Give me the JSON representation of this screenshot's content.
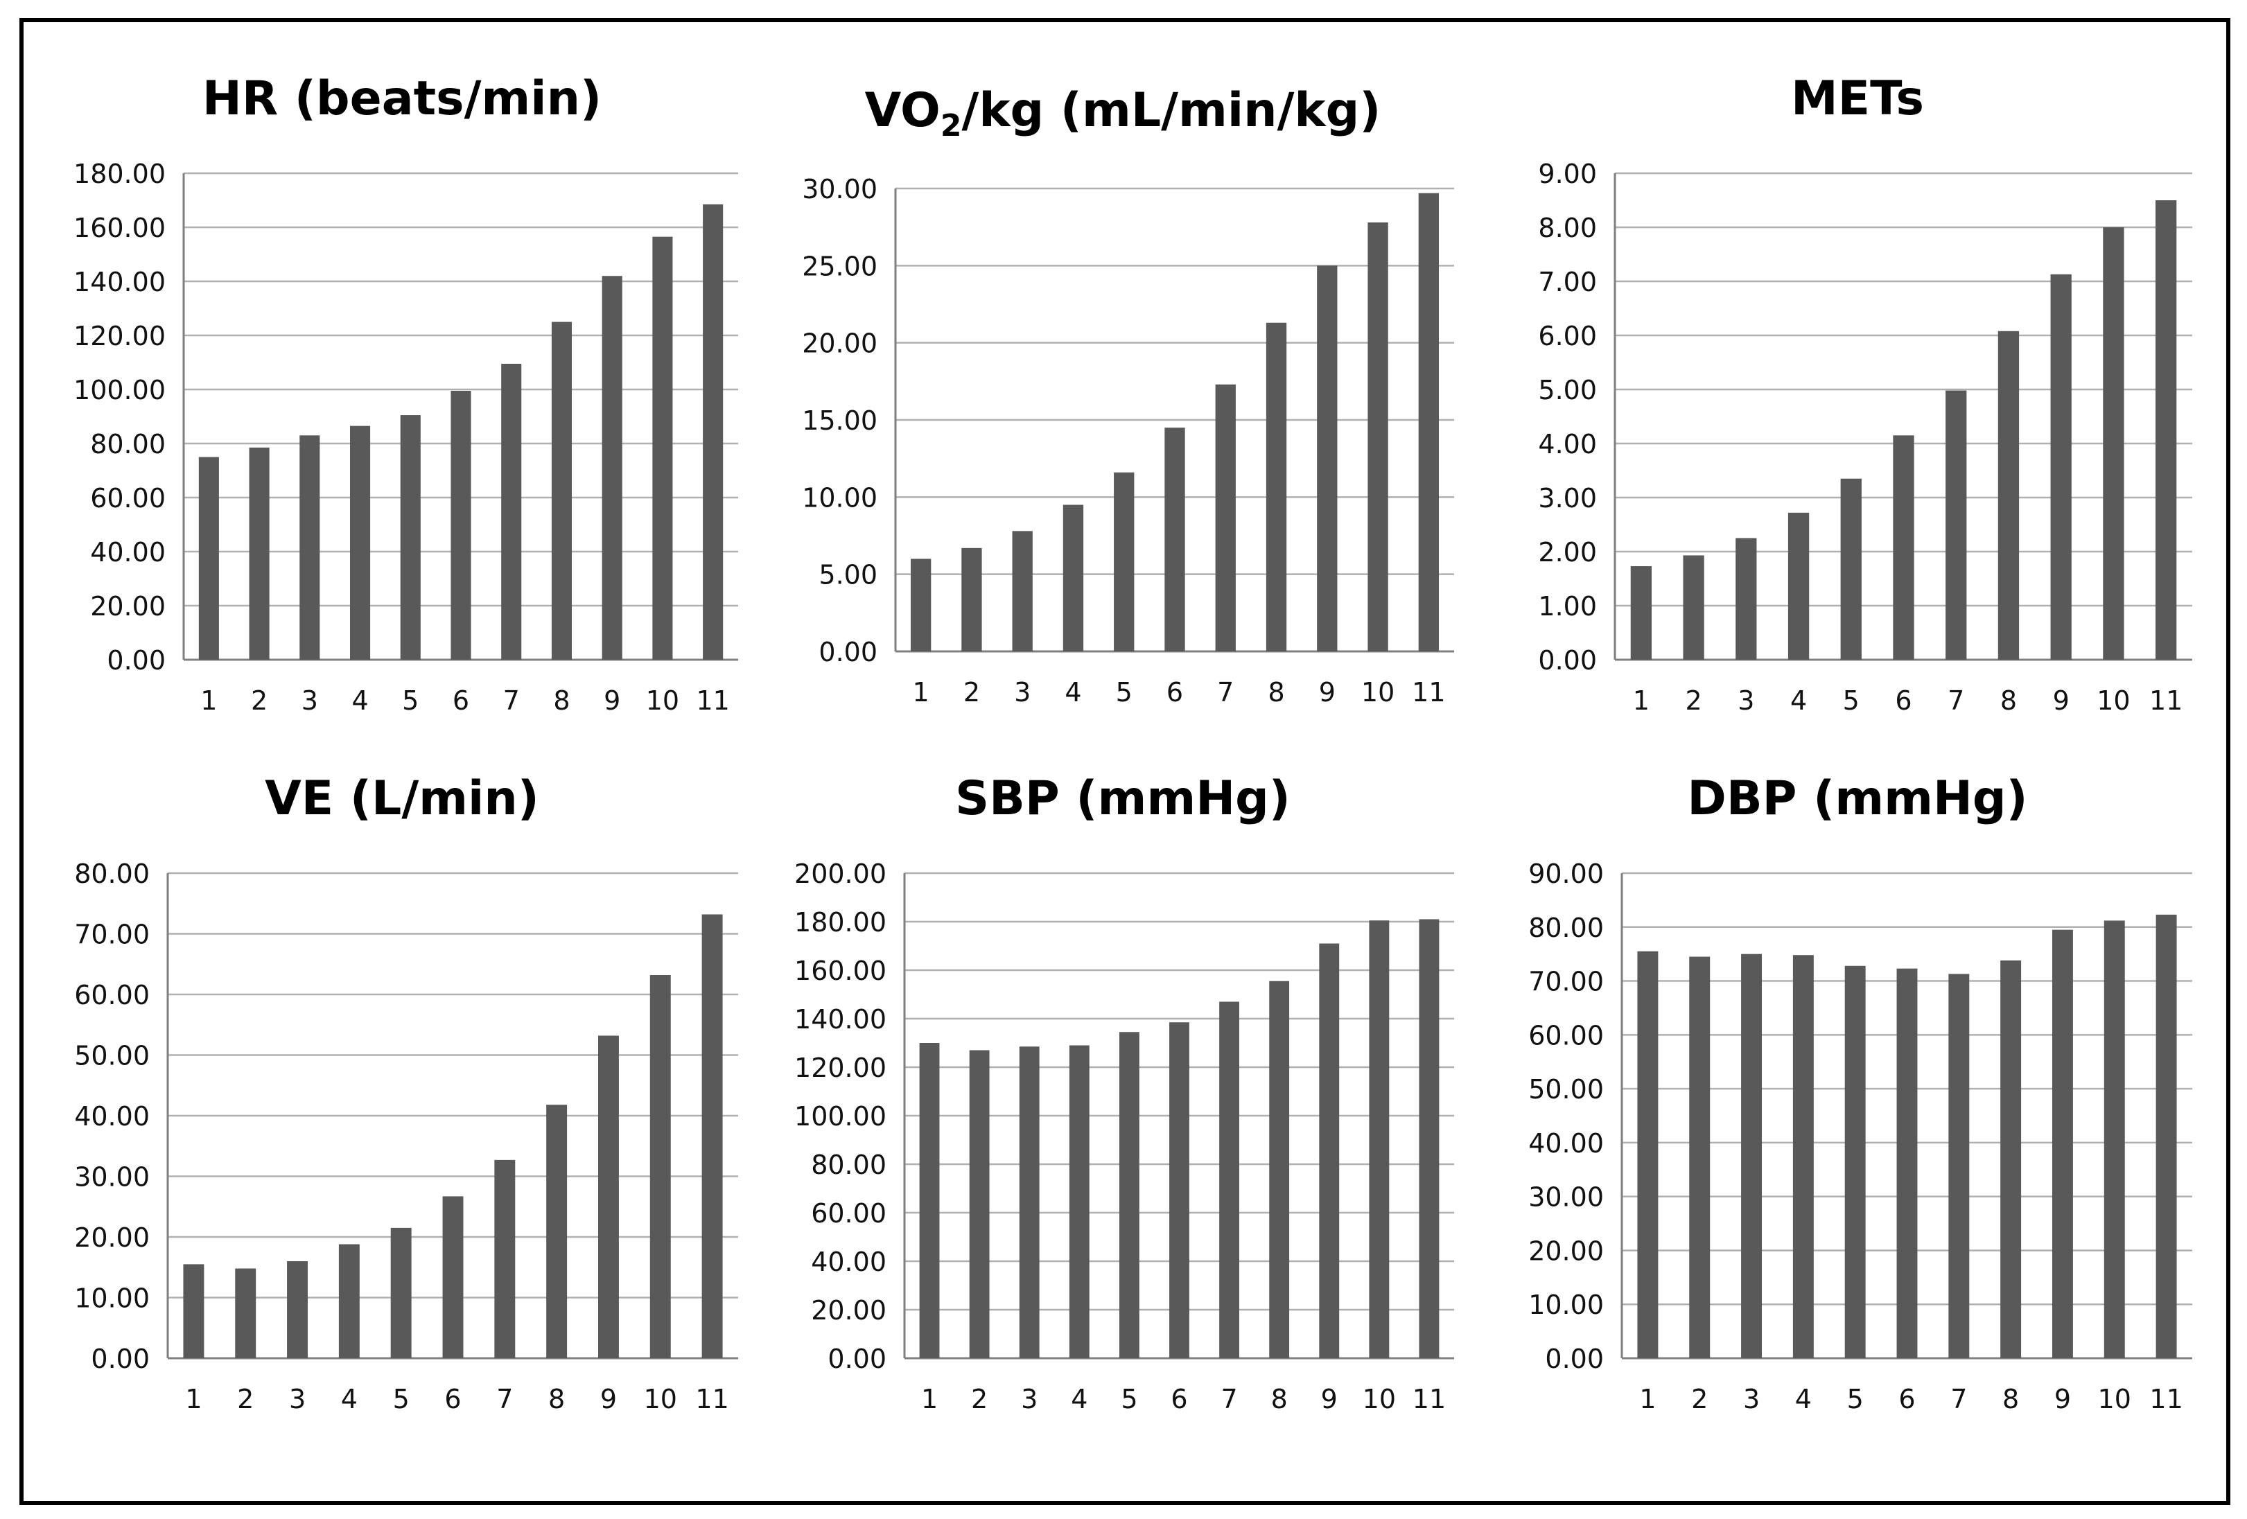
{
  "colors": {
    "bar": "#595959",
    "grid": "#b0b0b0",
    "axis": "#7f7f7f",
    "frame": "#000000",
    "background": "#ffffff"
  },
  "chart_data": [
    {
      "type": "bar",
      "title_main": "HR (beats/min)",
      "title_sub": "",
      "title_rest": "",
      "categories": [
        "1",
        "2",
        "3",
        "4",
        "5",
        "6",
        "7",
        "8",
        "9",
        "10",
        "11"
      ],
      "values": [
        75.0,
        78.5,
        83.0,
        86.5,
        90.5,
        99.5,
        109.5,
        125.0,
        142.0,
        156.5,
        168.5
      ],
      "ylim": [
        0,
        180
      ],
      "yticks": [
        "0.00",
        "20.00",
        "40.00",
        "60.00",
        "80.00",
        "100.00",
        "120.00",
        "140.00",
        "160.00",
        "180.00"
      ],
      "xlabel": "",
      "ylabel": ""
    },
    {
      "type": "bar",
      "title_main": "VO",
      "title_sub": "2",
      "title_rest": "/kg (mL/min/kg)",
      "categories": [
        "1",
        "2",
        "3",
        "4",
        "5",
        "6",
        "7",
        "8",
        "9",
        "10",
        "11"
      ],
      "values": [
        6.0,
        6.7,
        7.8,
        9.5,
        11.6,
        14.5,
        17.3,
        21.3,
        25.0,
        27.8,
        29.7
      ],
      "ylim": [
        0,
        30
      ],
      "yticks": [
        "0.00",
        "5.00",
        "10.00",
        "15.00",
        "20.00",
        "25.00",
        "30.00"
      ],
      "xlabel": "",
      "ylabel": ""
    },
    {
      "type": "bar",
      "title_main": "METs",
      "title_sub": "",
      "title_rest": "",
      "categories": [
        "1",
        "2",
        "3",
        "4",
        "5",
        "6",
        "7",
        "8",
        "9",
        "10",
        "11"
      ],
      "values": [
        1.73,
        1.93,
        2.25,
        2.72,
        3.35,
        4.15,
        4.98,
        6.08,
        7.13,
        8.0,
        8.5
      ],
      "ylim": [
        0,
        9
      ],
      "yticks": [
        "0.00",
        "1.00",
        "2.00",
        "3.00",
        "4.00",
        "5.00",
        "6.00",
        "7.00",
        "8.00",
        "9.00"
      ],
      "xlabel": "",
      "ylabel": ""
    },
    {
      "type": "bar",
      "title_main": "VE (L/min)",
      "title_sub": "",
      "title_rest": "",
      "categories": [
        "1",
        "2",
        "3",
        "4",
        "5",
        "6",
        "7",
        "8",
        "9",
        "10",
        "11"
      ],
      "values": [
        15.5,
        14.8,
        16.0,
        18.8,
        21.5,
        26.7,
        32.7,
        41.8,
        53.2,
        63.2,
        73.2
      ],
      "ylim": [
        0,
        80
      ],
      "yticks": [
        "0.00",
        "10.00",
        "20.00",
        "30.00",
        "40.00",
        "50.00",
        "60.00",
        "70.00",
        "80.00"
      ],
      "xlabel": "",
      "ylabel": ""
    },
    {
      "type": "bar",
      "title_main": "SBP (mmHg)",
      "title_sub": "",
      "title_rest": "",
      "categories": [
        "1",
        "2",
        "3",
        "4",
        "5",
        "6",
        "7",
        "8",
        "9",
        "10",
        "11"
      ],
      "values": [
        130.0,
        127.0,
        128.5,
        129.0,
        134.5,
        138.5,
        147.0,
        155.5,
        171.0,
        180.5,
        181.0
      ],
      "ylim": [
        0,
        200
      ],
      "yticks": [
        "0.00",
        "20.00",
        "40.00",
        "60.00",
        "80.00",
        "100.00",
        "120.00",
        "140.00",
        "160.00",
        "180.00",
        "200.00"
      ],
      "xlabel": "",
      "ylabel": ""
    },
    {
      "type": "bar",
      "title_main": "DBP (mmHg)",
      "title_sub": "",
      "title_rest": "",
      "categories": [
        "1",
        "2",
        "3",
        "4",
        "5",
        "6",
        "7",
        "8",
        "9",
        "10",
        "11"
      ],
      "values": [
        75.5,
        74.5,
        75.0,
        74.8,
        72.8,
        72.3,
        71.3,
        73.8,
        79.5,
        81.2,
        82.3
      ],
      "ylim": [
        0,
        90
      ],
      "yticks": [
        "0.00",
        "10.00",
        "20.00",
        "30.00",
        "40.00",
        "50.00",
        "60.00",
        "70.00",
        "80.00",
        "90.00"
      ],
      "xlabel": "",
      "ylabel": ""
    }
  ]
}
